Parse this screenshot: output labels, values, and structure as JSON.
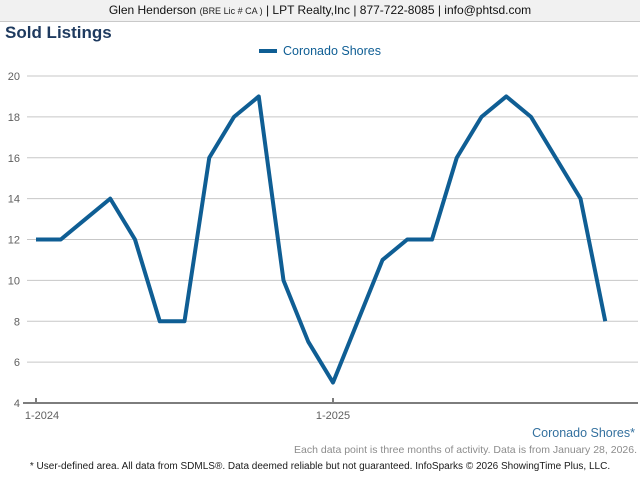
{
  "header": {
    "agent_name": "Glen Henderson",
    "license": "(BRE Lic # CA )",
    "company_contact": "| LPT Realty,Inc | 877-722-8085 | info@phtsd.com"
  },
  "title": "Sold Listings",
  "legend": {
    "label": "Coronado Shores"
  },
  "chart_data": {
    "type": "line",
    "title": "Sold Listings",
    "categories": [
      "1-2024",
      "2-2024",
      "3-2024",
      "4-2024",
      "5-2024",
      "6-2024",
      "7-2024",
      "8-2024",
      "9-2024",
      "10-2024",
      "11-2024",
      "12-2024",
      "1-2025",
      "2-2025",
      "3-2025",
      "4-2025",
      "5-2025",
      "6-2025",
      "7-2025",
      "8-2025",
      "9-2025",
      "10-2025",
      "11-2025",
      "12-2025"
    ],
    "series": [
      {
        "name": "Coronado Shores",
        "color": "#0f5e94",
        "values": [
          12,
          12,
          13,
          14,
          12,
          8,
          8,
          16,
          18,
          19,
          10,
          7,
          5,
          8,
          11,
          12,
          12,
          16,
          18,
          19,
          18,
          16,
          14,
          8
        ]
      }
    ],
    "ylim": [
      4,
      20
    ],
    "y_ticks": [
      4,
      6,
      8,
      10,
      12,
      14,
      16,
      18,
      20
    ],
    "x_tick_labels": [
      "1-2024",
      "1-2025"
    ],
    "grid": true,
    "legend_position": "top-center"
  },
  "annotations": {
    "series_label": "Coronado Shores*",
    "data_note": "Each data point is three months of activity. Data is from January 28, 2026.",
    "disclaimer": "* User-defined area. All data from SDMLS®. Data deemed reliable but not guaranteed. InfoSparks © 2026 ShowingTime Plus, LLC."
  },
  "colors": {
    "accent_blue": "#0f5e94",
    "title_navy": "#1e3a5f",
    "link_blue": "#34719f"
  }
}
